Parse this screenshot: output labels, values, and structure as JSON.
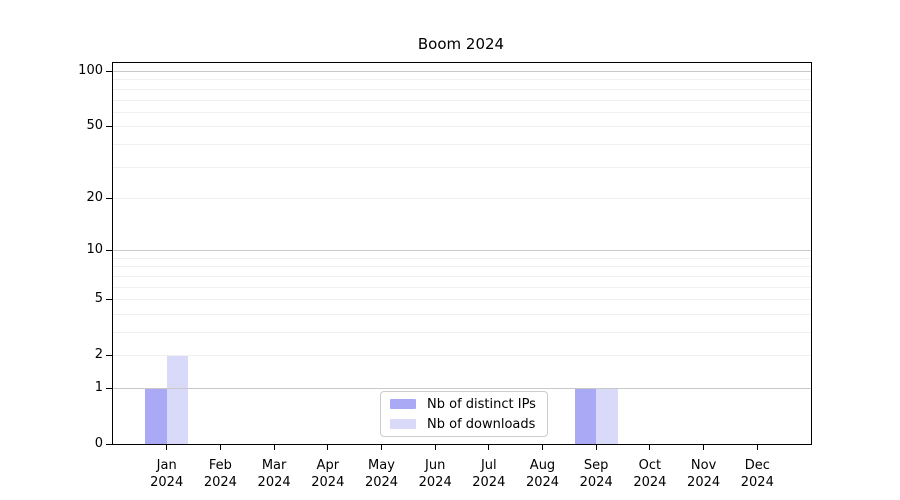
{
  "chart_data": {
    "type": "bar",
    "title": "Boom 2024",
    "year_label": "2024",
    "categories": [
      "Jan",
      "Feb",
      "Mar",
      "Apr",
      "May",
      "Jun",
      "Jul",
      "Aug",
      "Sep",
      "Oct",
      "Nov",
      "Dec"
    ],
    "series": [
      {
        "name": "Nb of distinct IPs",
        "color": "#a9a9f6",
        "values": [
          1,
          0,
          0,
          0,
          0,
          0,
          0,
          0,
          1,
          0,
          0,
          0
        ]
      },
      {
        "name": "Nb of downloads",
        "color": "#d9d9f9",
        "values": [
          2,
          0,
          0,
          0,
          0,
          0,
          0,
          0,
          1,
          0,
          0,
          0
        ]
      }
    ],
    "y_axis": {
      "scale": "log1p",
      "tick_values": [
        0,
        1,
        2,
        5,
        10,
        20,
        50,
        100
      ],
      "tick_labels": [
        "0",
        "1",
        "2",
        "5",
        "10",
        "20",
        "50",
        "100"
      ],
      "major_grid_values": [
        1,
        10,
        100
      ],
      "minor_grid_values": [
        2,
        3,
        4,
        5,
        6,
        7,
        8,
        9,
        20,
        30,
        40,
        50,
        60,
        70,
        80,
        90
      ],
      "ylim": [
        0,
        110
      ]
    },
    "x_axis": {
      "xlim_units": [
        -1,
        12
      ]
    },
    "legend": {
      "position": "lower center"
    },
    "grid_on": true
  }
}
